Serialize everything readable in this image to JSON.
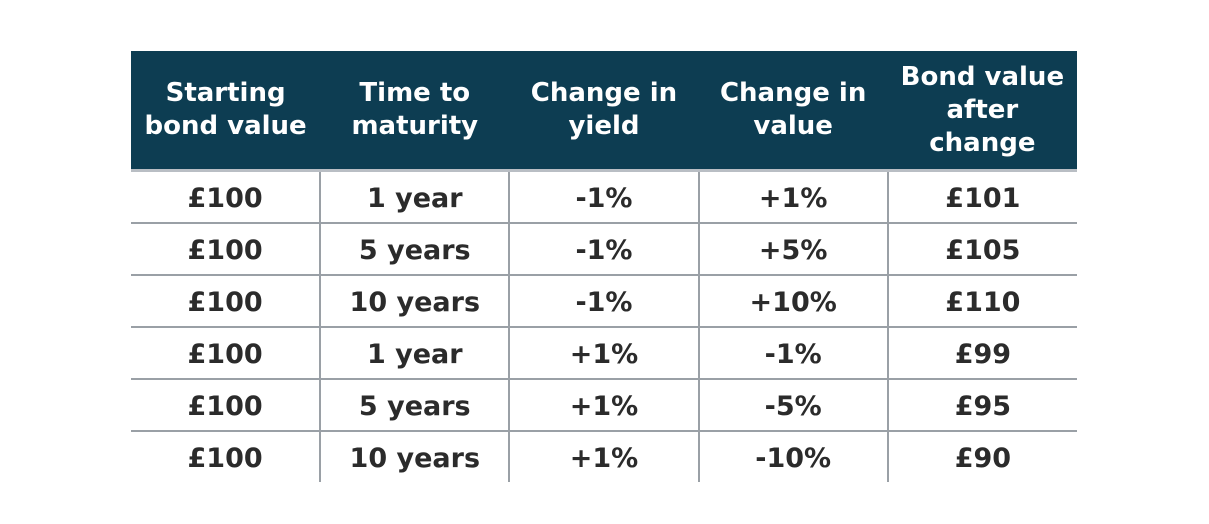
{
  "table": {
    "headers": [
      "Starting bond value",
      "Time to maturity",
      "Change in yield",
      "Change in value",
      "Bond value after change"
    ],
    "rows": [
      [
        "£100",
        "1 year",
        "-1%",
        "+1%",
        "£101"
      ],
      [
        "£100",
        "5 years",
        "-1%",
        "+5%",
        "£105"
      ],
      [
        "£100",
        "10 years",
        "-1%",
        "+10%",
        "£110"
      ],
      [
        "£100",
        "1 year",
        "+1%",
        "-1%",
        "£99"
      ],
      [
        "£100",
        "5 years",
        "+1%",
        "-5%",
        "£95"
      ],
      [
        "£100",
        "10 years",
        "+1%",
        "-10%",
        "£90"
      ]
    ]
  },
  "colors": {
    "header_background": "#0d3d52",
    "header_text": "#ffffff",
    "body_text": "#2b2b2b",
    "grid_lines": "#9aa0a6"
  }
}
